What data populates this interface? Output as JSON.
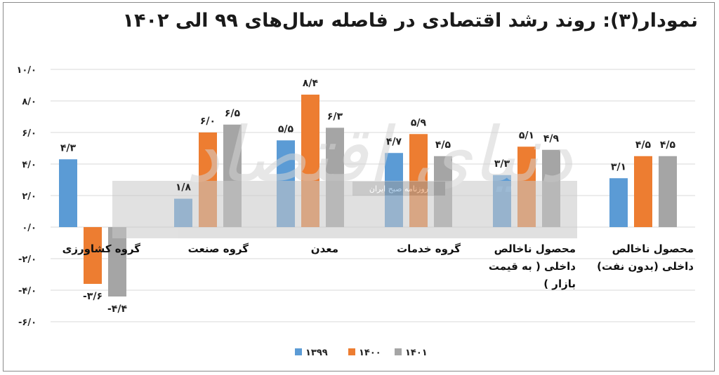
{
  "chart_data": {
    "type": "bar",
    "title": "نمودار(۳): روند رشد اقتصادی در فاصله سال‌های ۹۹ الی ۱۴۰۲",
    "categories": [
      [
        "گروه کشاورزی"
      ],
      [
        "گروه صنعت"
      ],
      [
        "معدن"
      ],
      [
        "گروه خدمات"
      ],
      [
        "محصول ناخالص",
        "داخلی ( به قیمت",
        "بازار )"
      ],
      [
        "محصول ناخالص",
        "داخلی (بدون نفت)"
      ]
    ],
    "series": [
      {
        "name": "۱۳۹۹",
        "color": "#5b9bd5",
        "values": [
          4.3,
          1.8,
          5.5,
          4.7,
          3.3,
          3.1
        ],
        "labels": [
          "۴/۳",
          "۱/۸",
          "۵/۵",
          "۴/۷",
          "۳/۳",
          "۳/۱"
        ]
      },
      {
        "name": "۱۴۰۰",
        "color": "#ed7d31",
        "values": [
          -3.6,
          6.0,
          8.4,
          5.9,
          5.1,
          4.5
        ],
        "labels": [
          "-۳/۶",
          "۶/۰",
          "۸/۴",
          "۵/۹",
          "۵/۱",
          "۴/۵"
        ]
      },
      {
        "name": "۱۴۰۱",
        "color": "#a5a5a5",
        "values": [
          -4.4,
          6.5,
          6.3,
          4.5,
          4.9,
          4.5
        ],
        "labels": [
          "-۴/۴",
          "۶/۵",
          "۶/۳",
          "۴/۵",
          "۴/۹",
          "۴/۵"
        ]
      }
    ],
    "yticks": [
      10,
      8,
      6,
      4,
      2,
      0,
      -2,
      -4,
      -6
    ],
    "ytick_labels": [
      "۱۰/۰",
      "۸/۰",
      "۶/۰",
      "۴/۰",
      "۲/۰",
      "۰/۰",
      "-۲/۰",
      "-۴/۰",
      "-۶/۰"
    ],
    "ylim": [
      -6,
      10
    ],
    "grid": true,
    "legend_position": "bottom"
  },
  "watermark": {
    "logo_text": "دنیای اقتصاد",
    "caption": "روزنامه صبح ایران"
  }
}
